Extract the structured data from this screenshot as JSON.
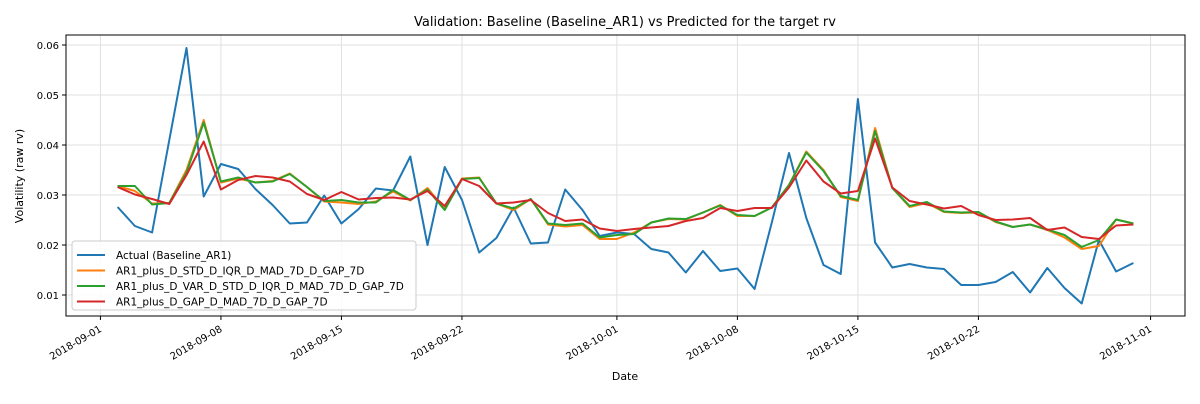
{
  "chart_data": {
    "type": "line",
    "title": "Validation: Baseline (Baseline_AR1) vs Predicted for the target rv",
    "xlabel": "Date",
    "ylabel": "Volatility (raw rv)",
    "xlim": [
      "2018-08-30",
      "2018-11-03"
    ],
    "ylim": [
      0.0058,
      0.062
    ],
    "grid": true,
    "legend_position": "lower-left",
    "x_ticks": [
      "2018-09-01",
      "2018-09-08",
      "2018-09-15",
      "2018-09-22",
      "2018-10-01",
      "2018-10-08",
      "2018-10-15",
      "2018-10-22",
      "2018-11-01"
    ],
    "y_ticks": [
      0.01,
      0.02,
      0.03,
      0.04,
      0.05,
      0.06
    ],
    "y_tick_labels": [
      "0.01",
      "0.02",
      "0.03",
      "0.04",
      "0.05",
      "0.06"
    ],
    "x": [
      "2018-09-02",
      "2018-09-03",
      "2018-09-04",
      "2018-09-05",
      "2018-09-06",
      "2018-09-07",
      "2018-09-08",
      "2018-09-09",
      "2018-09-10",
      "2018-09-11",
      "2018-09-12",
      "2018-09-13",
      "2018-09-14",
      "2018-09-15",
      "2018-09-16",
      "2018-09-17",
      "2018-09-18",
      "2018-09-19",
      "2018-09-20",
      "2018-09-21",
      "2018-09-22",
      "2018-09-23",
      "2018-09-24",
      "2018-09-25",
      "2018-09-26",
      "2018-09-27",
      "2018-09-28",
      "2018-09-29",
      "2018-09-30",
      "2018-10-01",
      "2018-10-02",
      "2018-10-03",
      "2018-10-04",
      "2018-10-05",
      "2018-10-06",
      "2018-10-07",
      "2018-10-08",
      "2018-10-09",
      "2018-10-10",
      "2018-10-11",
      "2018-10-12",
      "2018-10-13",
      "2018-10-14",
      "2018-10-15",
      "2018-10-16",
      "2018-10-17",
      "2018-10-18",
      "2018-10-19",
      "2018-10-20",
      "2018-10-21",
      "2018-10-22",
      "2018-10-23",
      "2018-10-24",
      "2018-10-25",
      "2018-10-26",
      "2018-10-27",
      "2018-10-28",
      "2018-10-29",
      "2018-10-30",
      "2018-10-31"
    ],
    "series": [
      {
        "name": "Actual (Baseline_AR1)",
        "color": "#1f77b4",
        "values": [
          0.0276,
          0.0238,
          0.0225,
          0.041,
          0.0594,
          0.0297,
          0.0362,
          0.0352,
          0.0312,
          0.028,
          0.0243,
          0.0245,
          0.0299,
          0.0243,
          0.0272,
          0.0313,
          0.0309,
          0.0377,
          0.02,
          0.0356,
          0.029,
          0.0185,
          0.0214,
          0.0275,
          0.0203,
          0.0205,
          0.0311,
          0.027,
          0.0218,
          0.0225,
          0.0222,
          0.0192,
          0.0185,
          0.0145,
          0.0188,
          0.0148,
          0.0153,
          0.0112,
          0.0245,
          0.0384,
          0.0254,
          0.016,
          0.0142,
          0.0492,
          0.0205,
          0.0155,
          0.0162,
          0.0155,
          0.0152,
          0.012,
          0.012,
          0.0126,
          0.0146,
          0.0105,
          0.0154,
          0.0114,
          0.0083,
          0.021,
          0.0147,
          0.0164
        ]
      },
      {
        "name": "AR1_plus_D_STD_D_IQR_D_MAD_7D_D_GAP_7D",
        "color": "#ff7f0e",
        "values": [
          0.0318,
          0.0308,
          0.0283,
          0.0284,
          0.035,
          0.045,
          0.0325,
          0.0333,
          0.0325,
          0.0328,
          0.0343,
          0.0316,
          0.0287,
          0.0285,
          0.0282,
          0.0287,
          0.0307,
          0.0289,
          0.0314,
          0.0272,
          0.0333,
          0.0335,
          0.0283,
          0.027,
          0.0292,
          0.0241,
          0.0237,
          0.024,
          0.0212,
          0.0212,
          0.0225,
          0.0245,
          0.0252,
          0.0251,
          0.0265,
          0.028,
          0.0258,
          0.0258,
          0.0275,
          0.032,
          0.0387,
          0.035,
          0.0296,
          0.0288,
          0.0434,
          0.0314,
          0.0276,
          0.0284,
          0.0266,
          0.0264,
          0.0265,
          0.0246,
          0.0236,
          0.0241,
          0.023,
          0.0215,
          0.0192,
          0.0198,
          0.0251,
          0.0243
        ]
      },
      {
        "name": "AR1_plus_D_VAR_D_STD_D_IQR_D_MAD_7D_D_GAP_7D",
        "color": "#2ca02c",
        "values": [
          0.0318,
          0.0318,
          0.0281,
          0.0284,
          0.0345,
          0.0445,
          0.0327,
          0.0335,
          0.0325,
          0.0327,
          0.0342,
          0.0316,
          0.0288,
          0.029,
          0.0285,
          0.0285,
          0.031,
          0.029,
          0.0311,
          0.027,
          0.0332,
          0.0334,
          0.0283,
          0.0273,
          0.0292,
          0.0243,
          0.024,
          0.0243,
          0.0215,
          0.022,
          0.0222,
          0.0245,
          0.0253,
          0.0252,
          0.0265,
          0.0279,
          0.026,
          0.0258,
          0.0275,
          0.032,
          0.0385,
          0.0348,
          0.0298,
          0.029,
          0.0428,
          0.0314,
          0.0278,
          0.0286,
          0.0267,
          0.0265,
          0.0266,
          0.0247,
          0.0236,
          0.0241,
          0.0231,
          0.022,
          0.0196,
          0.021,
          0.0251,
          0.0243
        ]
      },
      {
        "name": "AR1_plus_D_GAP_D_MAD_7D_D_GAP_7D",
        "color": "#d62728",
        "values": [
          0.0316,
          0.0301,
          0.0292,
          0.0282,
          0.034,
          0.0407,
          0.0311,
          0.033,
          0.0338,
          0.0335,
          0.0327,
          0.0302,
          0.029,
          0.0306,
          0.0291,
          0.0294,
          0.0295,
          0.0291,
          0.0308,
          0.0278,
          0.0332,
          0.0318,
          0.0283,
          0.0285,
          0.029,
          0.0264,
          0.0248,
          0.0251,
          0.0233,
          0.0228,
          0.0232,
          0.0235,
          0.0238,
          0.0248,
          0.0254,
          0.0274,
          0.0268,
          0.0274,
          0.0274,
          0.0315,
          0.0369,
          0.0327,
          0.0303,
          0.0308,
          0.0413,
          0.0315,
          0.0288,
          0.0281,
          0.0273,
          0.0278,
          0.026,
          0.025,
          0.0251,
          0.0254,
          0.023,
          0.0235,
          0.0216,
          0.0212,
          0.0239,
          0.0241
        ]
      }
    ]
  }
}
